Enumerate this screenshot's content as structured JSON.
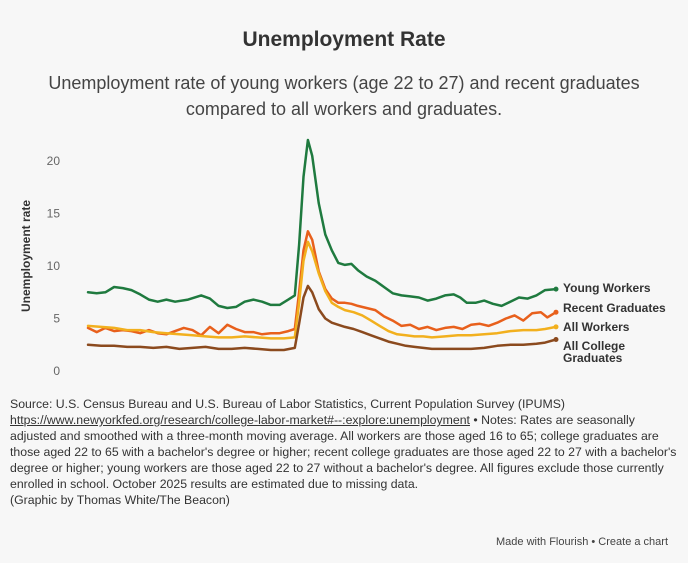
{
  "title": "Unemployment Rate",
  "subtitle": "Unemployment rate of young workers (age 22 to 27) and recent graduates compared to all workers and graduates.",
  "notes": {
    "source": "Source: U.S. Census Bureau and U.S. Bureau of Labor Statistics, Current Population Survey (IPUMS)",
    "link": "https://www.newyorkfed.org/research/college-labor-market#--:explore:unemployment",
    "rest": " • Notes: Rates are seasonally adjusted and smoothed with a three-month moving average. All workers are those aged 16 to 65; college graduates are those aged 22 to 65 with a bachelor's degree or higher; recent college graduates are those aged 22 to 27 with a bachelor's degree or higher; young workers are those aged 22 to 27 without a bachelor's degree. All figures exclude those currently enrolled in school. October 2025 results are estimated due to missing data.",
    "credit": "(Graphic by Thomas White/The Beacon)"
  },
  "footer": {
    "made_with": "Made with Flourish",
    "separator": " • ",
    "create": "Create a chart"
  },
  "chart_data": {
    "type": "line",
    "ylabel": "Unemployment rate",
    "ylim": [
      0,
      22
    ],
    "yticks": [
      0,
      5,
      10,
      15,
      20
    ],
    "grid": false,
    "legend": "end-of-line labels",
    "x_range": [
      2015.0,
      2025.75
    ],
    "series": [
      {
        "name": "Young Workers",
        "color": "#1f7a3f",
        "points": [
          [
            2015.0,
            7.5
          ],
          [
            2015.2,
            7.4
          ],
          [
            2015.4,
            7.5
          ],
          [
            2015.6,
            8.0
          ],
          [
            2015.8,
            7.9
          ],
          [
            2016.0,
            7.7
          ],
          [
            2016.2,
            7.3
          ],
          [
            2016.4,
            6.8
          ],
          [
            2016.6,
            6.6
          ],
          [
            2016.8,
            6.8
          ],
          [
            2017.0,
            6.6
          ],
          [
            2017.3,
            6.8
          ],
          [
            2017.6,
            7.2
          ],
          [
            2017.8,
            6.9
          ],
          [
            2018.0,
            6.2
          ],
          [
            2018.2,
            6.0
          ],
          [
            2018.4,
            6.1
          ],
          [
            2018.6,
            6.6
          ],
          [
            2018.8,
            6.8
          ],
          [
            2019.0,
            6.6
          ],
          [
            2019.2,
            6.3
          ],
          [
            2019.4,
            6.3
          ],
          [
            2019.6,
            6.8
          ],
          [
            2019.75,
            7.2
          ],
          [
            2019.85,
            12.0
          ],
          [
            2019.95,
            18.5
          ],
          [
            2020.05,
            22.0
          ],
          [
            2020.15,
            20.5
          ],
          [
            2020.3,
            16.0
          ],
          [
            2020.45,
            13.0
          ],
          [
            2020.6,
            11.5
          ],
          [
            2020.75,
            10.3
          ],
          [
            2020.9,
            10.1
          ],
          [
            2021.05,
            10.2
          ],
          [
            2021.2,
            9.6
          ],
          [
            2021.4,
            9.0
          ],
          [
            2021.6,
            8.6
          ],
          [
            2021.8,
            8.0
          ],
          [
            2022.0,
            7.4
          ],
          [
            2022.2,
            7.2
          ],
          [
            2022.4,
            7.1
          ],
          [
            2022.6,
            7.0
          ],
          [
            2022.8,
            6.7
          ],
          [
            2023.0,
            6.9
          ],
          [
            2023.2,
            7.2
          ],
          [
            2023.4,
            7.3
          ],
          [
            2023.55,
            7.0
          ],
          [
            2023.7,
            6.5
          ],
          [
            2023.9,
            6.5
          ],
          [
            2024.1,
            6.7
          ],
          [
            2024.3,
            6.4
          ],
          [
            2024.5,
            6.2
          ],
          [
            2024.7,
            6.6
          ],
          [
            2024.9,
            7.0
          ],
          [
            2025.1,
            6.9
          ],
          [
            2025.3,
            7.2
          ],
          [
            2025.5,
            7.7
          ],
          [
            2025.75,
            7.8
          ]
        ]
      },
      {
        "name": "Recent Graduates",
        "color": "#e8601c",
        "points": [
          [
            2015.0,
            4.1
          ],
          [
            2015.2,
            3.7
          ],
          [
            2015.4,
            4.1
          ],
          [
            2015.6,
            3.8
          ],
          [
            2015.8,
            3.9
          ],
          [
            2016.0,
            3.8
          ],
          [
            2016.2,
            3.6
          ],
          [
            2016.4,
            3.9
          ],
          [
            2016.6,
            3.6
          ],
          [
            2016.8,
            3.5
          ],
          [
            2017.0,
            3.8
          ],
          [
            2017.2,
            4.1
          ],
          [
            2017.4,
            3.9
          ],
          [
            2017.6,
            3.4
          ],
          [
            2017.8,
            4.2
          ],
          [
            2018.0,
            3.6
          ],
          [
            2018.2,
            4.4
          ],
          [
            2018.4,
            4.0
          ],
          [
            2018.6,
            3.7
          ],
          [
            2018.8,
            3.7
          ],
          [
            2019.0,
            3.5
          ],
          [
            2019.2,
            3.6
          ],
          [
            2019.4,
            3.6
          ],
          [
            2019.6,
            3.8
          ],
          [
            2019.75,
            4.0
          ],
          [
            2019.85,
            7.5
          ],
          [
            2019.95,
            11.5
          ],
          [
            2020.05,
            13.3
          ],
          [
            2020.15,
            12.5
          ],
          [
            2020.3,
            9.5
          ],
          [
            2020.45,
            7.8
          ],
          [
            2020.6,
            6.9
          ],
          [
            2020.75,
            6.5
          ],
          [
            2020.9,
            6.5
          ],
          [
            2021.05,
            6.4
          ],
          [
            2021.2,
            6.2
          ],
          [
            2021.4,
            6.0
          ],
          [
            2021.6,
            5.8
          ],
          [
            2021.8,
            5.2
          ],
          [
            2022.0,
            4.8
          ],
          [
            2022.2,
            4.3
          ],
          [
            2022.4,
            4.4
          ],
          [
            2022.6,
            4.0
          ],
          [
            2022.8,
            4.2
          ],
          [
            2023.0,
            3.9
          ],
          [
            2023.2,
            4.1
          ],
          [
            2023.4,
            4.2
          ],
          [
            2023.6,
            4.0
          ],
          [
            2023.8,
            4.4
          ],
          [
            2024.0,
            4.5
          ],
          [
            2024.2,
            4.3
          ],
          [
            2024.4,
            4.6
          ],
          [
            2024.6,
            5.0
          ],
          [
            2024.8,
            5.3
          ],
          [
            2025.0,
            4.8
          ],
          [
            2025.2,
            5.5
          ],
          [
            2025.4,
            5.6
          ],
          [
            2025.55,
            5.1
          ],
          [
            2025.75,
            5.6
          ]
        ]
      },
      {
        "name": "All Workers",
        "color": "#f2b01e",
        "points": [
          [
            2015.0,
            4.3
          ],
          [
            2015.3,
            4.2
          ],
          [
            2015.6,
            4.1
          ],
          [
            2015.9,
            3.9
          ],
          [
            2016.2,
            3.9
          ],
          [
            2016.5,
            3.7
          ],
          [
            2016.8,
            3.6
          ],
          [
            2017.1,
            3.5
          ],
          [
            2017.4,
            3.4
          ],
          [
            2017.7,
            3.3
          ],
          [
            2018.0,
            3.2
          ],
          [
            2018.3,
            3.2
          ],
          [
            2018.6,
            3.3
          ],
          [
            2018.9,
            3.2
          ],
          [
            2019.2,
            3.1
          ],
          [
            2019.5,
            3.1
          ],
          [
            2019.75,
            3.2
          ],
          [
            2019.85,
            6.5
          ],
          [
            2019.95,
            10.5
          ],
          [
            2020.05,
            12.3
          ],
          [
            2020.15,
            11.4
          ],
          [
            2020.3,
            9.3
          ],
          [
            2020.45,
            7.6
          ],
          [
            2020.6,
            6.5
          ],
          [
            2020.75,
            6.1
          ],
          [
            2020.9,
            5.8
          ],
          [
            2021.1,
            5.6
          ],
          [
            2021.3,
            5.3
          ],
          [
            2021.5,
            4.8
          ],
          [
            2021.7,
            4.3
          ],
          [
            2021.9,
            3.8
          ],
          [
            2022.1,
            3.5
          ],
          [
            2022.3,
            3.4
          ],
          [
            2022.5,
            3.3
          ],
          [
            2022.7,
            3.3
          ],
          [
            2022.9,
            3.2
          ],
          [
            2023.2,
            3.3
          ],
          [
            2023.5,
            3.4
          ],
          [
            2023.8,
            3.4
          ],
          [
            2024.1,
            3.5
          ],
          [
            2024.4,
            3.6
          ],
          [
            2024.7,
            3.8
          ],
          [
            2025.0,
            3.9
          ],
          [
            2025.3,
            3.9
          ],
          [
            2025.5,
            4.0
          ],
          [
            2025.75,
            4.2
          ]
        ]
      },
      {
        "name": "All College Graduates",
        "color": "#8b4a1e",
        "points": [
          [
            2015.0,
            2.5
          ],
          [
            2015.3,
            2.4
          ],
          [
            2015.6,
            2.4
          ],
          [
            2015.9,
            2.3
          ],
          [
            2016.2,
            2.3
          ],
          [
            2016.5,
            2.2
          ],
          [
            2016.8,
            2.3
          ],
          [
            2017.1,
            2.1
          ],
          [
            2017.4,
            2.2
          ],
          [
            2017.7,
            2.3
          ],
          [
            2018.0,
            2.1
          ],
          [
            2018.3,
            2.1
          ],
          [
            2018.6,
            2.2
          ],
          [
            2018.9,
            2.1
          ],
          [
            2019.2,
            2.0
          ],
          [
            2019.5,
            2.0
          ],
          [
            2019.75,
            2.2
          ],
          [
            2019.85,
            4.5
          ],
          [
            2019.95,
            7.0
          ],
          [
            2020.05,
            8.1
          ],
          [
            2020.15,
            7.5
          ],
          [
            2020.3,
            5.9
          ],
          [
            2020.45,
            5.0
          ],
          [
            2020.6,
            4.6
          ],
          [
            2020.75,
            4.4
          ],
          [
            2020.9,
            4.2
          ],
          [
            2021.1,
            4.0
          ],
          [
            2021.3,
            3.7
          ],
          [
            2021.5,
            3.4
          ],
          [
            2021.7,
            3.1
          ],
          [
            2021.9,
            2.8
          ],
          [
            2022.1,
            2.6
          ],
          [
            2022.3,
            2.4
          ],
          [
            2022.5,
            2.3
          ],
          [
            2022.7,
            2.2
          ],
          [
            2022.9,
            2.1
          ],
          [
            2023.2,
            2.1
          ],
          [
            2023.5,
            2.1
          ],
          [
            2023.8,
            2.1
          ],
          [
            2024.1,
            2.2
          ],
          [
            2024.4,
            2.4
          ],
          [
            2024.7,
            2.5
          ],
          [
            2025.0,
            2.5
          ],
          [
            2025.3,
            2.6
          ],
          [
            2025.5,
            2.7
          ],
          [
            2025.75,
            3.0
          ]
        ]
      }
    ]
  }
}
